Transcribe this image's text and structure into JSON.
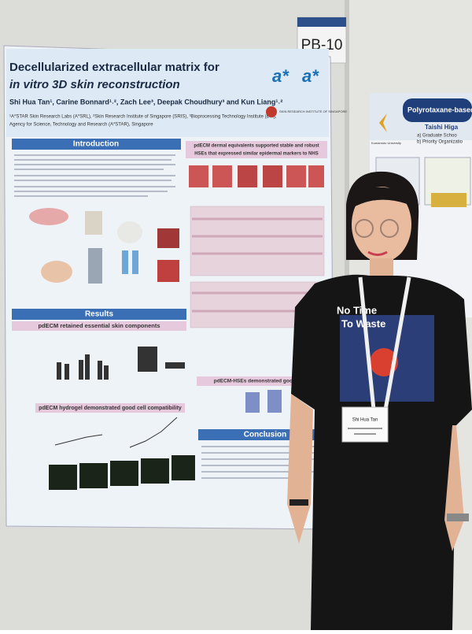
{
  "board_label": "PB-10",
  "poster": {
    "title_line1": "Decellularized extracellular matrix for",
    "title_line2": "in vitro 3D skin reconstruction",
    "authors": "Shi Hua Tan¹, Carine Bonnard¹˒², Zach Lee³, Deepak Choudhury³ and Kun Liang¹˒²",
    "affiliation_line1": "¹A*STAR Skin Research Labs (A*SRL), ²Skin Research Institute of Singapore (SRIS), ³Bioprocessing Technology Institute (BTI),",
    "affiliation_line2": "Agency for Science, Technology and Research (A*STAR), Singapore",
    "logo_text": "SKIN RESEARCH INSTITUTE OF SINGAPORE",
    "sections": {
      "introduction": "Introduction",
      "dermal_line1": "pdECM dermal equivalents supported stable and robust",
      "dermal_line2": "HSEs that expressed similar epidermal markers to NHS",
      "results": "Results",
      "components": "pdECM retained essential skin components",
      "hydrogel": "pdECM hydrogel demonstrated good cell compatibility",
      "barrier": "pdECM-HSEs demonstrated good barrier",
      "conclusion": "Conclusion"
    }
  },
  "side_poster": {
    "title": "Polyrotaxane-based T",
    "author": "Taishi Higa",
    "affil1": "a) Graduate Schoo",
    "affil2": "b) Priority Organizatio",
    "university": "Kumamoto University"
  },
  "badge": {
    "name": "Shi Hua Tan"
  },
  "shirt": {
    "line1": "No Time",
    "line2": "To Waste"
  }
}
